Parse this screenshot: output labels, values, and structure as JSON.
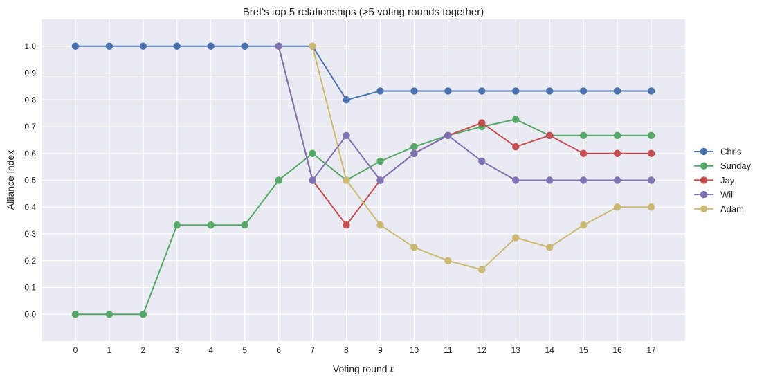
{
  "chart_data": {
    "type": "line",
    "title": "Bret's top 5 relationships (>5 voting rounds together)",
    "xlabel": "Voting round",
    "xlabel_var": "t",
    "ylabel": "Alliance index",
    "xlim": [
      -1,
      18
    ],
    "ylim": [
      -0.1,
      1.1
    ],
    "x": [
      0,
      1,
      2,
      3,
      4,
      5,
      6,
      7,
      8,
      9,
      10,
      11,
      12,
      13,
      14,
      15,
      16,
      17
    ],
    "x_ticks": [
      "0",
      "1",
      "2",
      "3",
      "4",
      "5",
      "6",
      "7",
      "8",
      "9",
      "10",
      "11",
      "12",
      "13",
      "14",
      "15",
      "16",
      "17"
    ],
    "y_ticks": [
      "0.0",
      "0.1",
      "0.2",
      "0.3",
      "0.4",
      "0.5",
      "0.6",
      "0.7",
      "0.8",
      "0.9",
      "1.0"
    ],
    "grid": true,
    "legend_position": "right",
    "series": [
      {
        "name": "Chris",
        "color": "#4c72b0",
        "x": [
          0,
          1,
          2,
          3,
          4,
          5,
          6,
          7,
          8,
          9,
          10,
          11,
          12,
          13,
          14,
          15,
          16,
          17
        ],
        "values": [
          1.0,
          1.0,
          1.0,
          1.0,
          1.0,
          1.0,
          1.0,
          1.0,
          0.8,
          0.833,
          0.833,
          0.833,
          0.833,
          0.833,
          0.833,
          0.833,
          0.833,
          0.833
        ]
      },
      {
        "name": "Sunday",
        "color": "#55a868",
        "x": [
          0,
          1,
          2,
          3,
          4,
          5,
          6,
          7,
          8,
          9,
          10,
          11,
          12,
          13,
          14,
          15,
          16,
          17
        ],
        "values": [
          0.0,
          0.0,
          0.0,
          0.333,
          0.333,
          0.333,
          0.5,
          0.6,
          0.5,
          0.571,
          0.625,
          0.667,
          0.7,
          0.727,
          0.667,
          0.667,
          0.667,
          0.667
        ]
      },
      {
        "name": "Jay",
        "color": "#c44e52",
        "x": [
          6,
          7,
          8,
          9,
          10,
          11,
          12,
          13,
          14,
          15,
          16,
          17
        ],
        "values": [
          1.0,
          0.5,
          0.333,
          0.5,
          0.6,
          0.667,
          0.714,
          0.625,
          0.667,
          0.6,
          0.6,
          0.6
        ]
      },
      {
        "name": "Will",
        "color": "#8172b2",
        "x": [
          6,
          7,
          8,
          9,
          10,
          11,
          12,
          13,
          14,
          15,
          16,
          17
        ],
        "values": [
          1.0,
          0.5,
          0.667,
          0.5,
          0.6,
          0.667,
          0.571,
          0.5,
          0.5,
          0.5,
          0.5,
          0.5
        ]
      },
      {
        "name": "Adam",
        "color": "#ccb974",
        "x": [
          7,
          8,
          9,
          10,
          11,
          12,
          13,
          14,
          15,
          16,
          17
        ],
        "values": [
          1.0,
          0.5,
          0.333,
          0.25,
          0.2,
          0.167,
          0.286,
          0.25,
          0.333,
          0.4,
          0.4
        ]
      }
    ]
  }
}
